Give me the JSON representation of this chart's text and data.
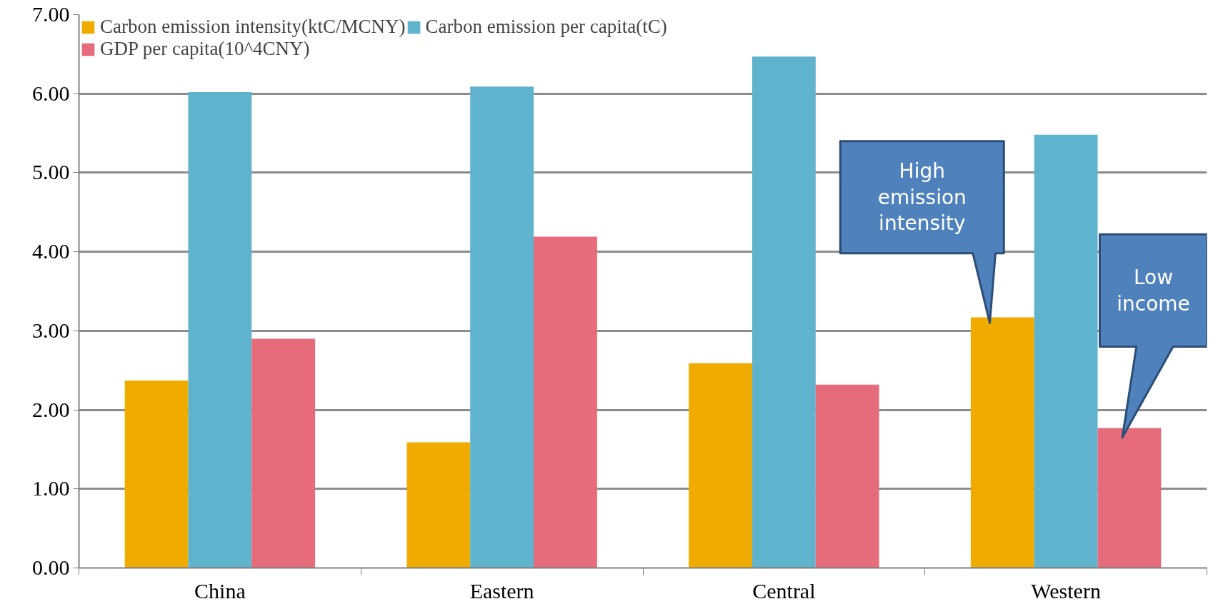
{
  "chart_data": {
    "type": "bar",
    "categories": [
      "China",
      "Eastern",
      "Central",
      "Western"
    ],
    "series": [
      {
        "name": "Carbon emission intensity(ktC/MCNY)",
        "color": "#f0ab00",
        "values": [
          2.37,
          1.59,
          2.59,
          3.17
        ]
      },
      {
        "name": "Carbon emission per capita(tC)",
        "color": "#5fb3cc",
        "values": [
          6.02,
          6.09,
          6.47,
          5.48
        ]
      },
      {
        "name": "GDP per capita(10^4CNY)",
        "color": "#e66b7b",
        "values": [
          2.9,
          4.19,
          2.32,
          1.77
        ]
      }
    ],
    "ylim": [
      0,
      7
    ],
    "yticks": [
      {
        "value": 0,
        "label": "0.00"
      },
      {
        "value": 1,
        "label": "1.00"
      },
      {
        "value": 2,
        "label": "2.00"
      },
      {
        "value": 3,
        "label": "3.00"
      },
      {
        "value": 4,
        "label": "4.00"
      },
      {
        "value": 5,
        "label": "5.00"
      },
      {
        "value": 6,
        "label": "6.00"
      },
      {
        "value": 7,
        "label": "7.00"
      }
    ],
    "grid": "y",
    "legend": "top left",
    "annotations": [
      "High emission intensity",
      "Low income"
    ]
  }
}
